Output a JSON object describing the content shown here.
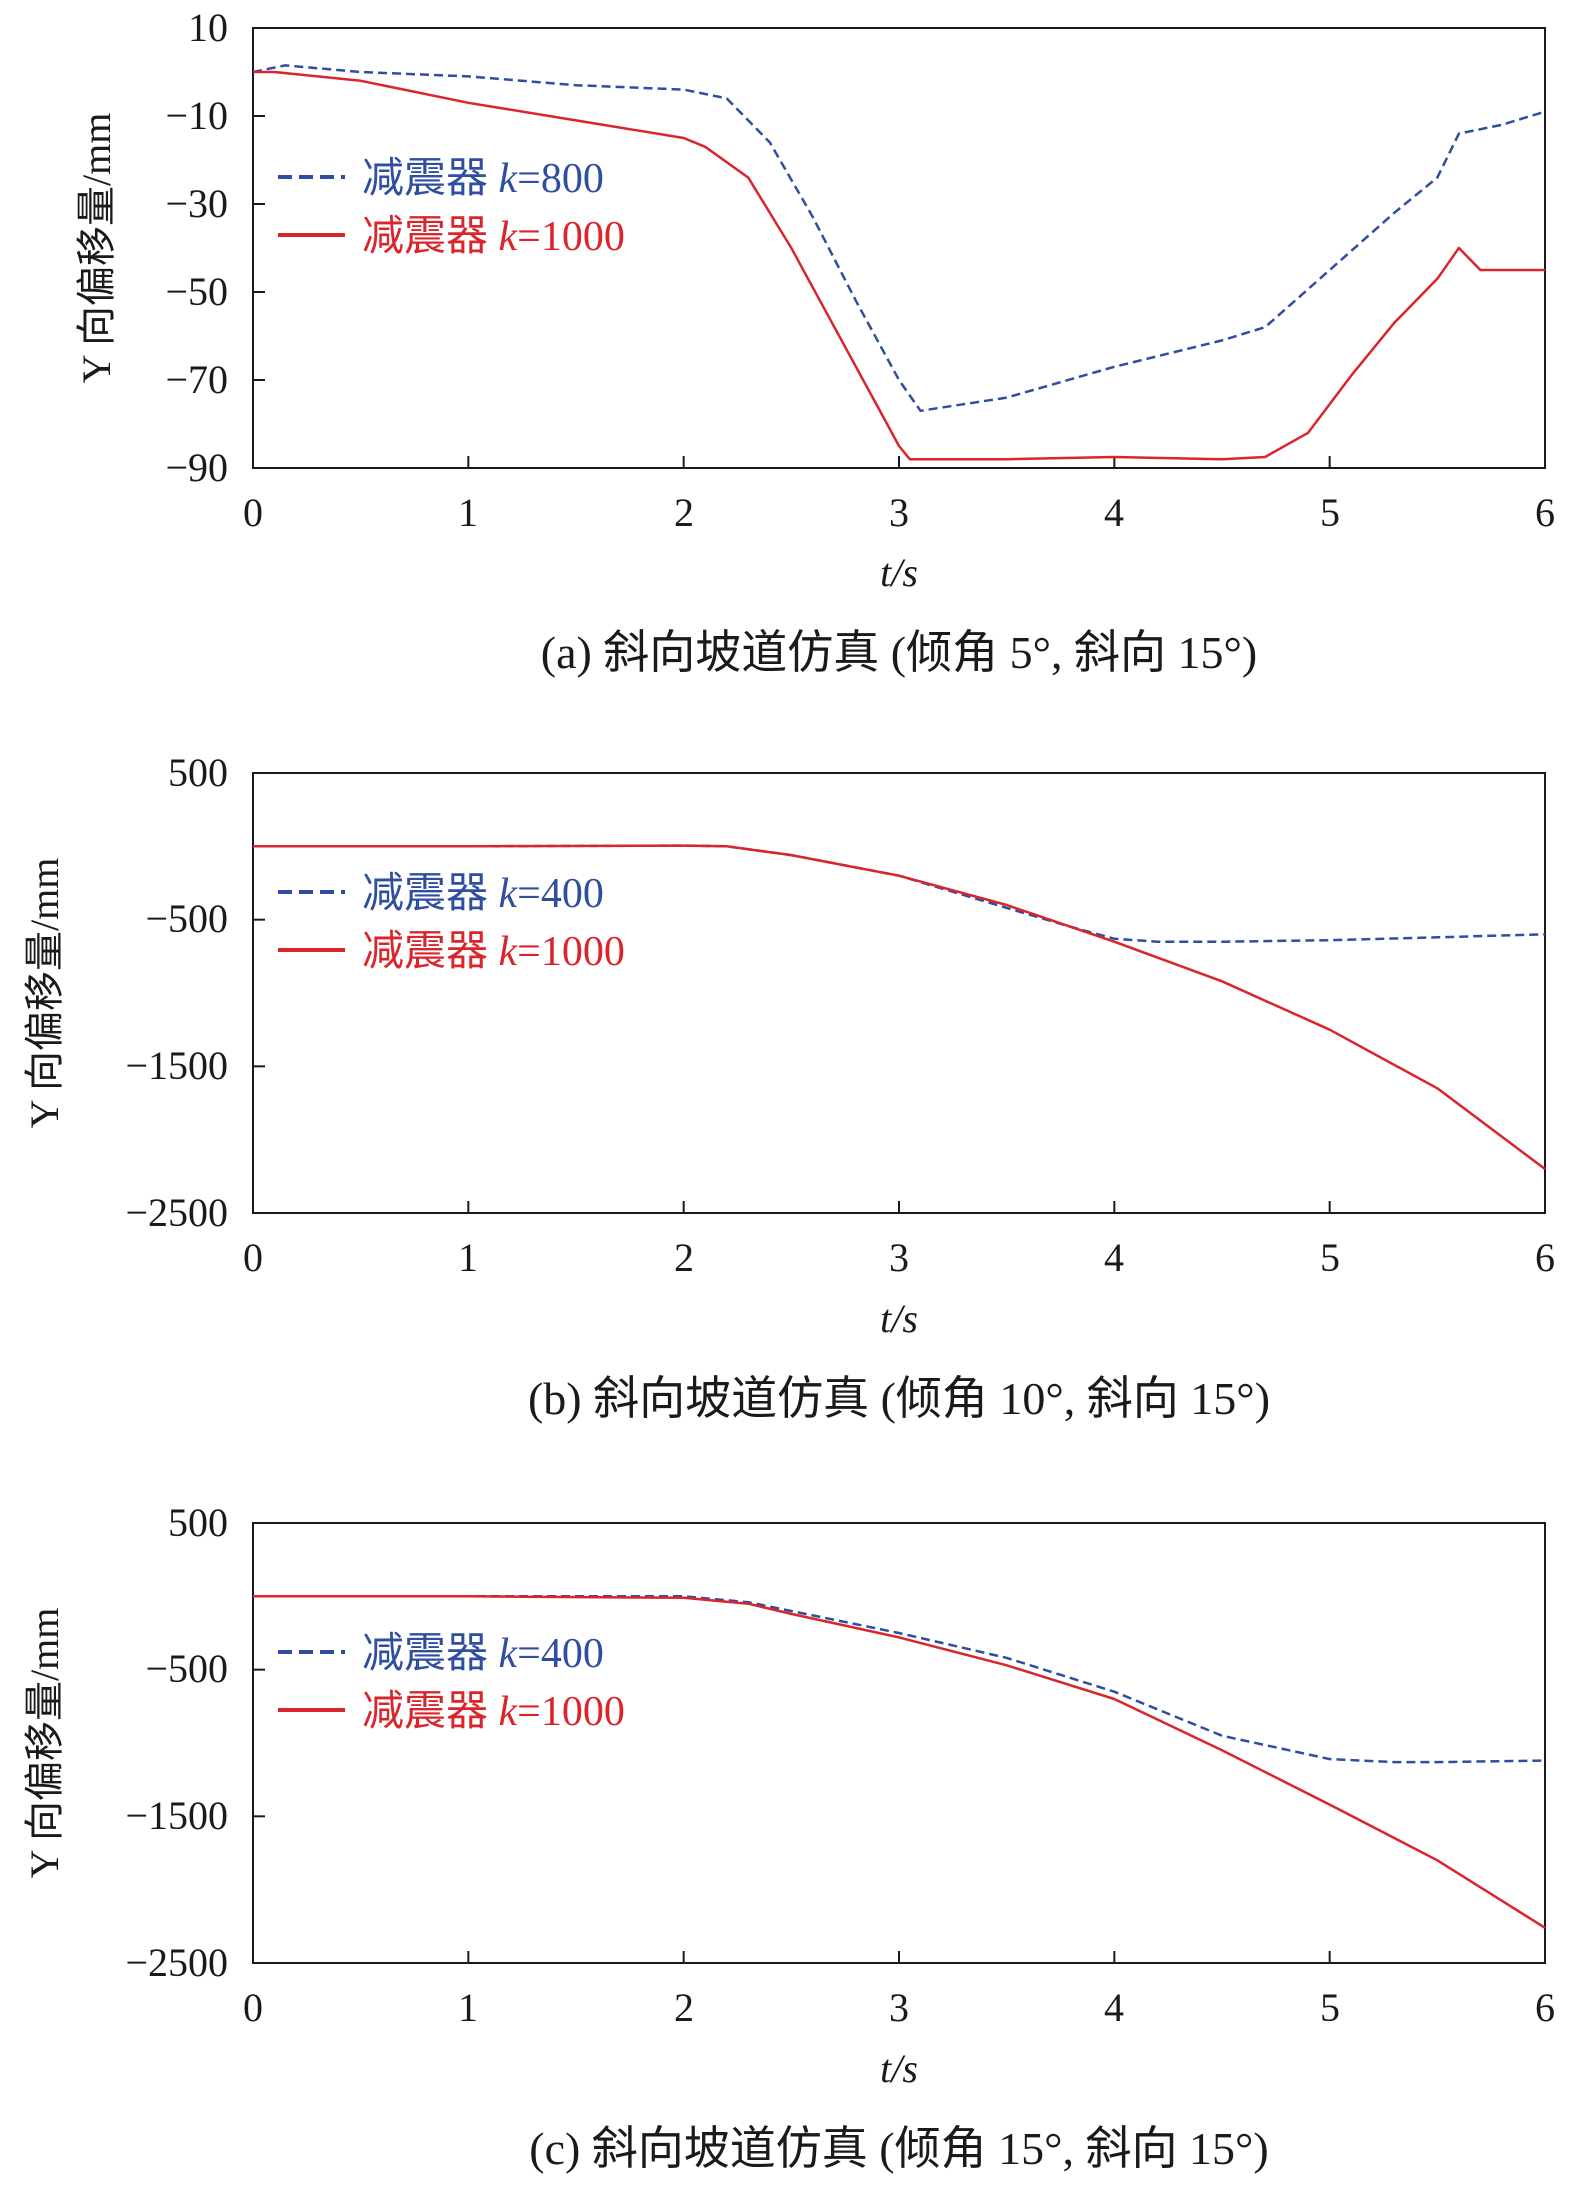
{
  "colors": {
    "blue": "#2f4ea0",
    "red": "#d9252b",
    "axis": "#1a1a1a"
  },
  "chart_data": [
    {
      "type": "line",
      "caption": "(a) 斜向坡道仿真 (倾角 5°, 斜向 15°)",
      "xlabel": "t/s",
      "ylabel": "Y 向偏移量/mm",
      "xlim": [
        0,
        6
      ],
      "ylim": [
        -90,
        10
      ],
      "xticks": [
        "0",
        "1",
        "2",
        "3",
        "4",
        "5",
        "6"
      ],
      "yticks": [
        "10",
        "−10",
        "−30",
        "−50",
        "−70",
        "−90"
      ],
      "ytick_values": [
        10,
        -10,
        -30,
        -50,
        -70,
        -90
      ],
      "legend_position": "upper-left",
      "series": [
        {
          "name": "减震器 k=800",
          "k_prefix": "减震器 ",
          "k_value": "=800",
          "style": "dashed",
          "color": "#2f4ea0",
          "x": [
            0,
            0.15,
            0.5,
            1.0,
            1.5,
            2.0,
            2.2,
            2.4,
            2.6,
            2.8,
            3.0,
            3.1,
            3.5,
            4.0,
            4.5,
            4.7,
            5.0,
            5.3,
            5.5,
            5.6,
            5.8,
            6.0
          ],
          "y": [
            0,
            1.5,
            0,
            -1,
            -3,
            -4,
            -6,
            -16,
            -33,
            -52,
            -70,
            -77,
            -74,
            -67,
            -61,
            -58,
            -45,
            -32,
            -24,
            -14,
            -12,
            -9
          ]
        },
        {
          "name": "减震器 k=1000",
          "k_prefix": "减震器 ",
          "k_value": "=1000",
          "style": "solid",
          "color": "#d9252b",
          "x": [
            0,
            0.1,
            0.5,
            1.0,
            1.5,
            2.0,
            2.1,
            2.3,
            2.5,
            2.7,
            2.9,
            3.0,
            3.05,
            3.5,
            4.0,
            4.5,
            4.7,
            4.9,
            5.1,
            5.3,
            5.5,
            5.6,
            5.7,
            6.0
          ],
          "y": [
            0,
            0,
            -2,
            -7,
            -11,
            -15,
            -17,
            -24,
            -40,
            -58,
            -76,
            -85,
            -88,
            -88,
            -87.5,
            -88,
            -87.5,
            -82,
            -69,
            -57,
            -47,
            -40,
            -45,
            -45
          ]
        }
      ]
    },
    {
      "type": "line",
      "caption": "(b) 斜向坡道仿真 (倾角 10°, 斜向 15°)",
      "xlabel": "t/s",
      "ylabel": "Y 向偏移量/mm",
      "xlim": [
        0,
        6
      ],
      "ylim": [
        -2500,
        500
      ],
      "xticks": [
        "0",
        "1",
        "2",
        "3",
        "4",
        "5",
        "6"
      ],
      "yticks": [
        "500",
        "−500",
        "−1500",
        "−2500"
      ],
      "ytick_values": [
        500,
        -500,
        -1500,
        -2500
      ],
      "legend_position": "upper-left",
      "series": [
        {
          "name": "减震器 k=400",
          "k_prefix": "减震器 ",
          "k_value": "=400",
          "style": "dashed",
          "color": "#2f4ea0",
          "x": [
            0,
            1,
            2,
            2.2,
            2.5,
            3,
            3.5,
            3.8,
            4.0,
            4.2,
            4.5,
            5,
            5.5,
            6
          ],
          "y": [
            0,
            0,
            5,
            0,
            -60,
            -200,
            -420,
            -550,
            -630,
            -650,
            -650,
            -640,
            -620,
            -600
          ]
        },
        {
          "name": "减震器 k=1000",
          "k_prefix": "减震器 ",
          "k_value": "=1000",
          "style": "solid",
          "color": "#d9252b",
          "x": [
            0,
            1,
            2,
            2.2,
            2.5,
            3,
            3.5,
            4.0,
            4.5,
            5.0,
            5.5,
            6.0
          ],
          "y": [
            0,
            0,
            5,
            0,
            -60,
            -200,
            -400,
            -650,
            -920,
            -1250,
            -1650,
            -2200
          ]
        }
      ]
    },
    {
      "type": "line",
      "caption": "(c) 斜向坡道仿真 (倾角 15°, 斜向 15°)",
      "xlabel": "t/s",
      "ylabel": "Y 向偏移量/mm",
      "xlim": [
        0,
        6
      ],
      "ylim": [
        -2500,
        500
      ],
      "xticks": [
        "0",
        "1",
        "2",
        "3",
        "4",
        "5",
        "6"
      ],
      "yticks": [
        "500",
        "−500",
        "−1500",
        "−2500"
      ],
      "ytick_values": [
        500,
        -500,
        -1500,
        -2500
      ],
      "legend_position": "upper-left",
      "series": [
        {
          "name": "减震器 k=400",
          "k_prefix": "减震器 ",
          "k_value": "=400",
          "style": "dashed",
          "color": "#2f4ea0",
          "x": [
            0,
            1,
            2,
            2.3,
            2.5,
            3,
            3.5,
            4.0,
            4.5,
            5.0,
            5.3,
            5.5,
            6.0
          ],
          "y": [
            0,
            0,
            0,
            -40,
            -100,
            -250,
            -420,
            -650,
            -950,
            -1110,
            -1130,
            -1130,
            -1120
          ]
        },
        {
          "name": "减震器 k=1000",
          "k_prefix": "减震器 ",
          "k_value": "=1000",
          "style": "solid",
          "color": "#d9252b",
          "x": [
            0,
            1,
            2,
            2.3,
            2.5,
            3,
            3.5,
            4.0,
            4.5,
            5.0,
            5.5,
            6.0
          ],
          "y": [
            0,
            0,
            -10,
            -50,
            -120,
            -280,
            -470,
            -700,
            -1050,
            -1420,
            -1800,
            -2260
          ]
        }
      ]
    }
  ]
}
